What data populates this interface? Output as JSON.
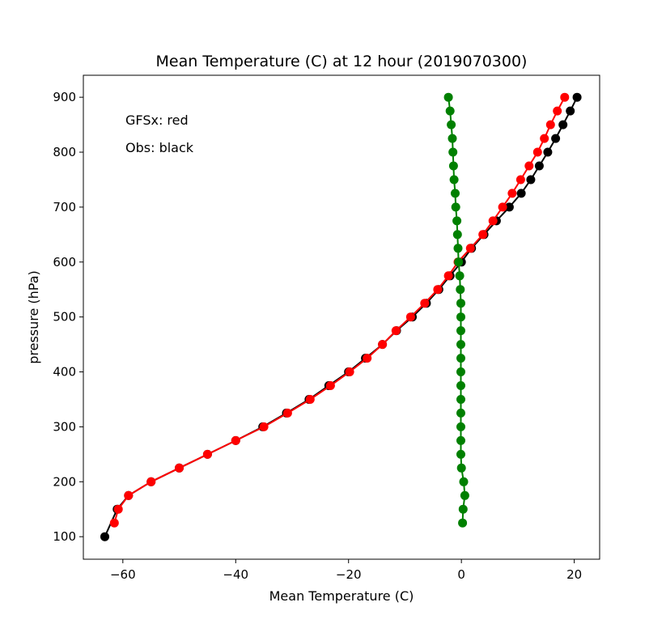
{
  "chart_data": {
    "type": "line",
    "title": "Mean Temperature (C) at 12 hour (2019070300)",
    "xlabel": "Mean Temperature (C)",
    "ylabel": "pressure (hPa)",
    "xlim": [
      -67,
      24.5
    ],
    "ylim": [
      59,
      940
    ],
    "xticks": [
      -60,
      -40,
      -20,
      0,
      20
    ],
    "xtick_labels": [
      "−60",
      "−40",
      "−20",
      "0",
      "20"
    ],
    "yticks": [
      100,
      200,
      300,
      400,
      500,
      600,
      700,
      800,
      900
    ],
    "ytick_labels": [
      "100",
      "200",
      "300",
      "400",
      "500",
      "600",
      "700",
      "800",
      "900"
    ],
    "grid": false,
    "annotations": [
      "GFSx: red",
      "Obs: black"
    ],
    "series": [
      {
        "color": "#000000",
        "x": [
          20.5,
          19.3,
          18,
          16.7,
          15.3,
          13.8,
          12.3,
          10.6,
          8.5,
          6.2,
          4,
          1.8,
          0,
          -2,
          -4,
          -6.2,
          -8.7,
          -11.5,
          -14,
          -17,
          -20,
          -23.5,
          -27,
          -31,
          -35.2,
          -40,
          -45,
          -50,
          -55,
          -59,
          -61,
          -63.2
        ],
        "y": [
          900,
          875,
          850,
          825,
          800,
          775,
          750,
          725,
          700,
          675,
          650,
          625,
          600,
          575,
          550,
          525,
          500,
          475,
          450,
          425,
          400,
          375,
          350,
          325,
          300,
          275,
          250,
          225,
          200,
          175,
          150,
          100
        ]
      },
      {
        "color": "#ff0000",
        "x": [
          18.3,
          17,
          15.8,
          14.7,
          13.5,
          12,
          10.5,
          9,
          7.3,
          5.6,
          3.8,
          1.6,
          -0.6,
          -2.3,
          -4.2,
          -6.5,
          -9,
          -11.6,
          -14,
          -16.7,
          -19.8,
          -23.2,
          -26.8,
          -30.8,
          -35,
          -40,
          -45,
          -50,
          -55,
          -59,
          -60.8,
          -61.5
        ],
        "y": [
          900,
          875,
          850,
          825,
          800,
          775,
          750,
          725,
          700,
          675,
          650,
          625,
          600,
          575,
          550,
          525,
          500,
          475,
          450,
          425,
          400,
          375,
          350,
          325,
          300,
          275,
          250,
          225,
          200,
          175,
          150,
          125
        ]
      },
      {
        "color": "#008000",
        "x": [
          -2.3,
          -2,
          -1.8,
          -1.6,
          -1.5,
          -1.4,
          -1.3,
          -1.1,
          -1,
          -0.8,
          -0.7,
          -0.6,
          -0.5,
          -0.3,
          -0.2,
          -0.1,
          -0.1,
          -0.1,
          -0.1,
          -0.1,
          -0.1,
          -0.1,
          -0.1,
          -0.1,
          -0.1,
          -0.1,
          -0.1,
          0,
          0.4,
          0.6,
          0.3,
          0.2
        ],
        "y": [
          900,
          875,
          850,
          825,
          800,
          775,
          750,
          725,
          700,
          675,
          650,
          625,
          600,
          575,
          550,
          525,
          500,
          475,
          450,
          425,
          400,
          375,
          350,
          325,
          300,
          275,
          250,
          225,
          200,
          175,
          150,
          125
        ]
      }
    ]
  }
}
